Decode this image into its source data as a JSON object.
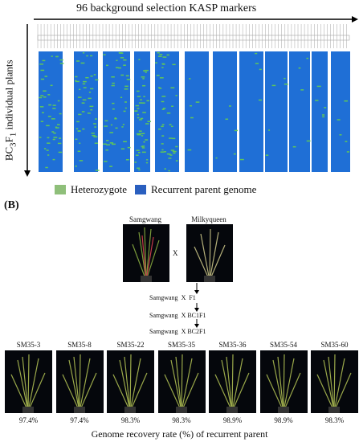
{
  "panel_a": {
    "x_title": "96 background selection KASP markers",
    "y_title": "BC3F1 individual plants",
    "legend": [
      {
        "label": "Heterozygote",
        "color": "#8fbf7a"
      },
      {
        "label": "Recurrent parent genome",
        "color": "#2a5fbf"
      }
    ],
    "colors": {
      "recurrent": "#1f6fd6",
      "het": "#5fc65a",
      "missing": "#ffffff",
      "grid": "#a6a6a6"
    }
  },
  "panel_b": {
    "label": "(B)",
    "parents": [
      {
        "name": "Samgwang"
      },
      {
        "name": "Milkyqueen"
      }
    ],
    "cross_symbol": "X",
    "generations": [
      {
        "left": "Samgwang",
        "x": "X",
        "right": "F1"
      },
      {
        "left": "Samgwang",
        "x": "X",
        "right": "BC1F1"
      },
      {
        "left": "Samgwang",
        "x": "X",
        "right": "BC2F1"
      }
    ],
    "lines": [
      {
        "name": "SM35-3",
        "recovery": "97.4%"
      },
      {
        "name": "SM35-8",
        "recovery": "97.4%"
      },
      {
        "name": "SM35-22",
        "recovery": "98.3%"
      },
      {
        "name": "SM35-35",
        "recovery": "98.3%"
      },
      {
        "name": "SM35-36",
        "recovery": "98.9%"
      },
      {
        "name": "SM35-54",
        "recovery": "98.9%"
      },
      {
        "name": "SM35-60",
        "recovery": "98.3%"
      }
    ],
    "caption": "Genome recovery rate (%) of recurrent parent"
  }
}
